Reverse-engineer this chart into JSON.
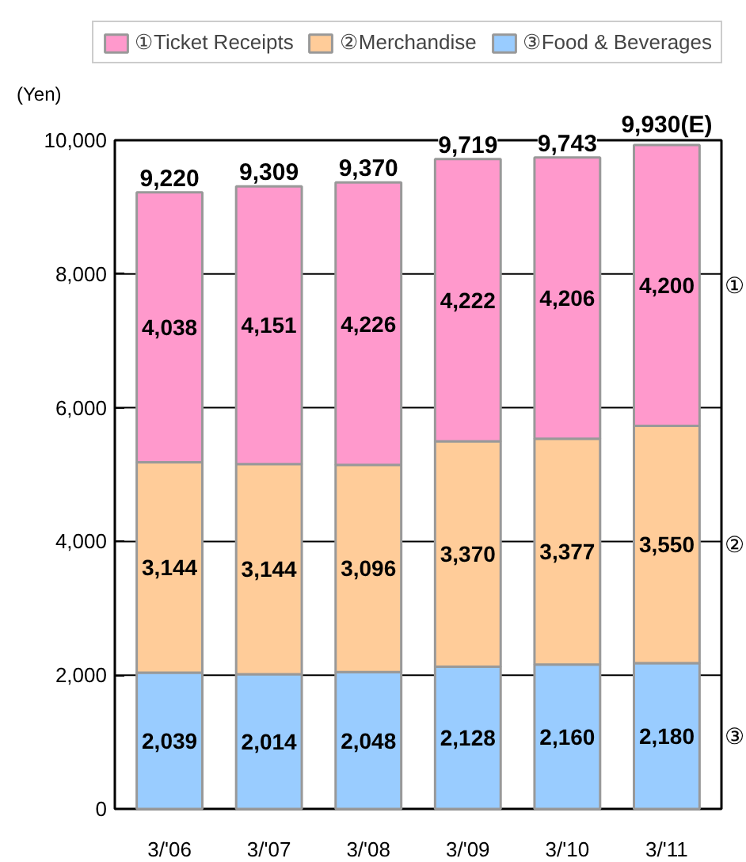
{
  "chart_data": {
    "type": "bar",
    "stacked": true,
    "ylabel": "(Yen)",
    "categories": [
      "3/'06",
      "3/'07",
      "3/'08",
      "3/'09",
      "3/'10",
      "3/'11"
    ],
    "series": [
      {
        "name": "③Food & Beverages",
        "color": "#99ccff",
        "values": [
          2039,
          2014,
          2048,
          2128,
          2160,
          2180
        ],
        "value_labels": [
          "2,039",
          "2,014",
          "2,048",
          "2,128",
          "2,160",
          "2,180"
        ]
      },
      {
        "name": "②Merchandise",
        "color": "#ffcc99",
        "values": [
          3144,
          3144,
          3096,
          3370,
          3377,
          3550
        ],
        "value_labels": [
          "3,144",
          "3,144",
          "3,096",
          "3,370",
          "3,377",
          "3,550"
        ]
      },
      {
        "name": "①Ticket Receipts",
        "color": "#ff99cc",
        "values": [
          4038,
          4151,
          4226,
          4222,
          4206,
          4200
        ],
        "value_labels": [
          "4,038",
          "4,151",
          "4,226",
          "4,222",
          "4,206",
          "4,200"
        ]
      }
    ],
    "totals": [
      "9,220",
      "9,309",
      "9,370",
      "9,719",
      "9,743",
      "9,930(E)"
    ],
    "annotations": [
      "③",
      "②",
      "①"
    ],
    "grid": "y",
    "legend": "top",
    "ylim": [
      0,
      10000
    ],
    "yticks": [
      0,
      {
        "value": 2000,
        "label": "2,000"
      },
      {
        "value": 4000,
        "label": "4,000"
      },
      {
        "value": 6000,
        "label": "6,000"
      },
      {
        "value": 8000,
        "label": "8,000"
      },
      {
        "value": 10000,
        "label": "10,000"
      }
    ]
  }
}
